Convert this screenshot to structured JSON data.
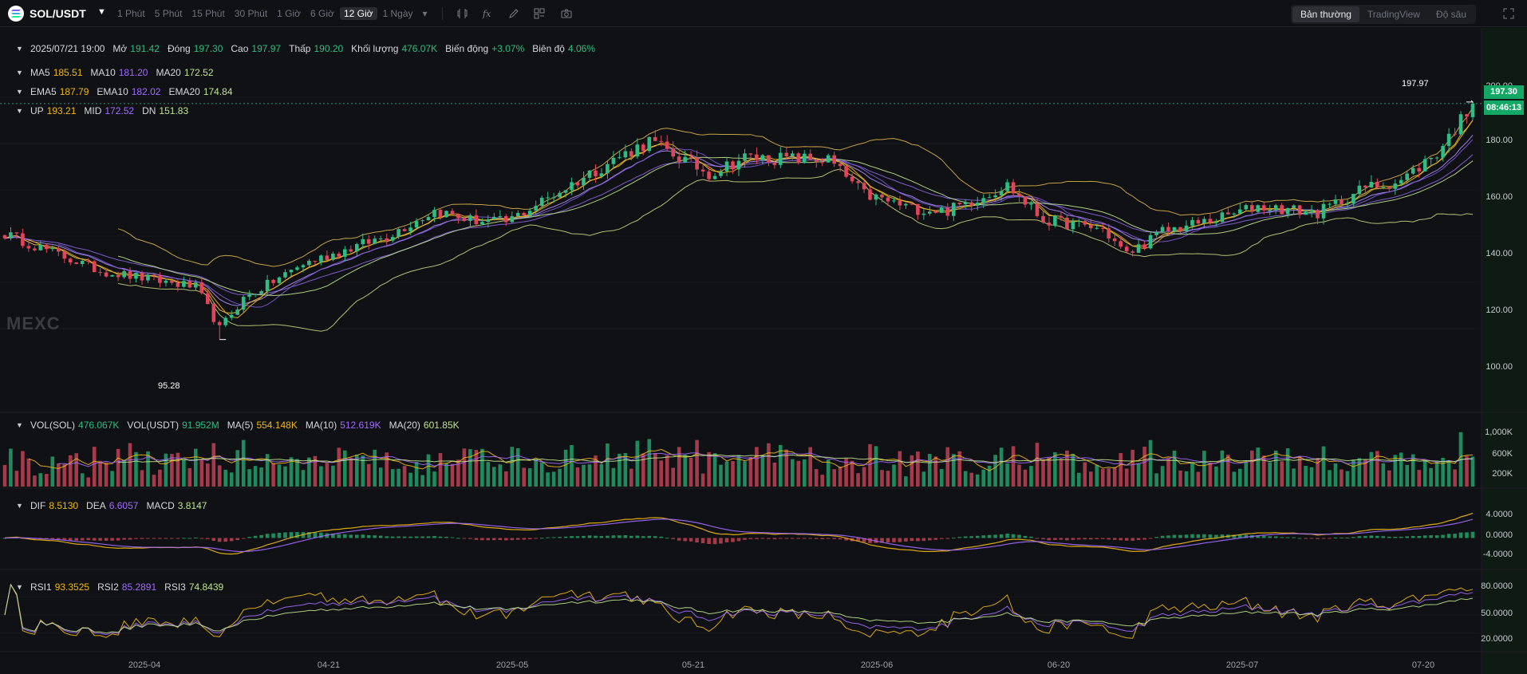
{
  "toolbar": {
    "symbol": "SOL/USDT",
    "intervals": [
      "1 Phút",
      "5 Phút",
      "15 Phút",
      "30 Phút",
      "1 Giờ",
      "6 Giờ",
      "12 Giờ",
      "1 Ngày"
    ],
    "active_interval": "12 Giờ",
    "views": [
      "Bản thường",
      "TradingView",
      "Độ sâu"
    ],
    "active_view": "Bản thường"
  },
  "ohlc": {
    "datetime": "2025/07/21 19:00",
    "open_label": "Mở",
    "open": "191.42",
    "close_label": "Đóng",
    "close": "197.30",
    "high_label": "Cao",
    "high": "197.97",
    "low_label": "Thấp",
    "low": "190.20",
    "volume_label": "Khối lượng",
    "volume": "476.07K",
    "change_label": "Biến động",
    "change": "+3.07%",
    "amplitude_label": "Biên độ",
    "amplitude": "4.06%"
  },
  "ma": {
    "ma5_label": "MA5",
    "ma5": "185.51",
    "ma10_label": "MA10",
    "ma10": "181.20",
    "ma20_label": "MA20",
    "ma20": "172.52"
  },
  "ema": {
    "ema5_label": "EMA5",
    "ema5": "187.79",
    "ema10_label": "EMA10",
    "ema10": "182.02",
    "ema20_label": "EMA20",
    "ema20": "174.84"
  },
  "boll": {
    "up_label": "UP",
    "up": "193.21",
    "mid_label": "MID",
    "mid": "172.52",
    "dn_label": "DN",
    "dn": "151.83"
  },
  "vol": {
    "sol_label": "VOL(SOL)",
    "sol": "476.067K",
    "usdt_label": "VOL(USDT)",
    "usdt": "91.952M",
    "ma5_label": "MA(5)",
    "ma5": "554.148K",
    "ma10_label": "MA(10)",
    "ma10": "512.619K",
    "ma20_label": "MA(20)",
    "ma20": "601.85K"
  },
  "macd": {
    "dif_label": "DIF",
    "dif": "8.5130",
    "dea_label": "DEA",
    "dea": "6.6057",
    "macd_label": "MACD",
    "macd": "3.8147"
  },
  "rsi": {
    "rsi1_label": "RSI1",
    "rsi1": "93.3525",
    "rsi2_label": "RSI2",
    "rsi2": "85.2891",
    "rsi3_label": "RSI3",
    "rsi3": "74.8439"
  },
  "price_axis": [
    "200.00",
    "180.00",
    "160.00",
    "140.00",
    "120.00",
    "100.00"
  ],
  "volume_axis": [
    "1,000K",
    "600K",
    "200K"
  ],
  "macd_axis": [
    "4.0000",
    "0.0000",
    "-4.0000"
  ],
  "rsi_axis": [
    "80.0000",
    "50.0000",
    "20.0000"
  ],
  "date_axis": [
    "2025-04",
    "04-21",
    "2025-05",
    "05-21",
    "2025-06",
    "06-20",
    "2025-07",
    "07-20"
  ],
  "current_price": "197.30",
  "countdown": "08:46:13",
  "high_marker": "197.97",
  "low_marker": "95.28",
  "watermark": "MEXC",
  "colors": {
    "up": "#2ebd85",
    "down": "#e0455a",
    "ma5": "#f0b90b",
    "ma10": "#a06bff",
    "ma20": "#bfe38c",
    "boll": "#d9b24c",
    "background": "#101114"
  },
  "chart_data": {
    "type": "candlestick",
    "interval": "12 Giờ",
    "ylim": [
      90,
      205
    ],
    "close_anchors": [
      {
        "x": "2025-03-20",
        "y": 141
      },
      {
        "x": "2025-03-28",
        "y": 125
      },
      {
        "x": "2025-04-05",
        "y": 118
      },
      {
        "x": "2025-04-07",
        "y": 100
      },
      {
        "x": "2025-04-09",
        "y": 113
      },
      {
        "x": "2025-04-14",
        "y": 128
      },
      {
        "x": "2025-04-21",
        "y": 140
      },
      {
        "x": "2025-04-25",
        "y": 151
      },
      {
        "x": "2025-04-28",
        "y": 147
      },
      {
        "x": "2025-05-01",
        "y": 146
      },
      {
        "x": "2025-05-10",
        "y": 173
      },
      {
        "x": "2025-05-13",
        "y": 181
      },
      {
        "x": "2025-05-18",
        "y": 167
      },
      {
        "x": "2025-05-21",
        "y": 174
      },
      {
        "x": "2025-05-28",
        "y": 173
      },
      {
        "x": "2025-05-31",
        "y": 158
      },
      {
        "x": "2025-06-04",
        "y": 152
      },
      {
        "x": "2025-06-07",
        "y": 151
      },
      {
        "x": "2025-06-12",
        "y": 162
      },
      {
        "x": "2025-06-15",
        "y": 147
      },
      {
        "x": "2025-06-20",
        "y": 143
      },
      {
        "x": "2025-06-22",
        "y": 132
      },
      {
        "x": "2025-06-25",
        "y": 142
      },
      {
        "x": "2025-06-30",
        "y": 148
      },
      {
        "x": "2025-07-03",
        "y": 153
      },
      {
        "x": "2025-07-08",
        "y": 150
      },
      {
        "x": "2025-07-12",
        "y": 161
      },
      {
        "x": "2025-07-15",
        "y": 164
      },
      {
        "x": "2025-07-18",
        "y": 176
      },
      {
        "x": "2025-07-21",
        "y": 197.3
      }
    ],
    "last_candle": {
      "open": 191.42,
      "high": 197.97,
      "low": 190.2,
      "close": 197.3,
      "volume": "476.07K"
    },
    "marked_high": 197.97,
    "marked_low": 95.28,
    "indicators": [
      "MA5",
      "MA10",
      "MA20",
      "EMA5",
      "EMA10",
      "EMA20",
      "BOLL",
      "VOL",
      "MACD",
      "RSI"
    ]
  }
}
